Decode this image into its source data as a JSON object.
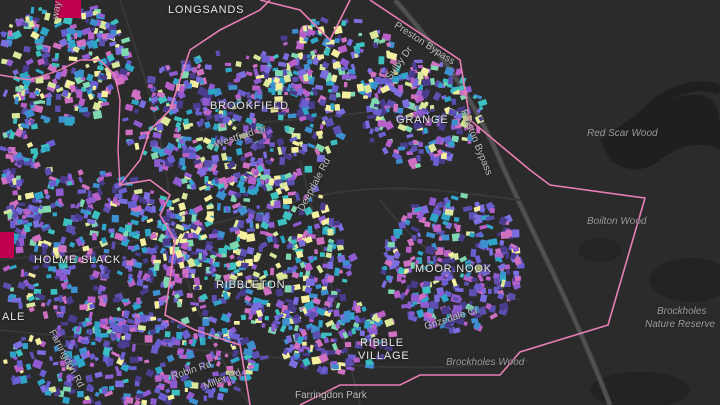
{
  "map": {
    "place_labels": [
      "LONGSANDS",
      "BROOKFIELD",
      "GRANGE",
      "HOLME SLACK",
      "RIBBLETON",
      "MOOR NOOK",
      "RIBBLE",
      "VILLAGE",
      "ALE"
    ],
    "road_labels": [
      "Preston Bypass",
      "Preston Bypass",
      "Westfield Dr",
      "Deepdale Rd",
      "Grizedale Cr",
      "Farringdon Park",
      "Miller Rd",
      "Robin Rd",
      "Farringdon Rd",
      "Sulby Dr",
      "way"
    ],
    "area_labels": [
      "Red Scar Wood",
      "Boilton Wood",
      "Brockholes Wood",
      "Brockholes",
      "Nature Reserve"
    ],
    "colors": {
      "background": "#2b2b2b",
      "water": "#1f1f1f",
      "boundary": "#e87fb4",
      "road": "#3a3a3a",
      "motorway": "#555555",
      "palette": [
        "#4a3c8c",
        "#5b4fb0",
        "#6a5fd0",
        "#7b6fe0",
        "#8e5bd0",
        "#b860c8",
        "#d070c0",
        "#3e8fd0",
        "#2fa5c8",
        "#3cc0c0",
        "#7fd8b0",
        "#d9e89a",
        "#f5f0a0",
        "#c0004f"
      ]
    }
  }
}
